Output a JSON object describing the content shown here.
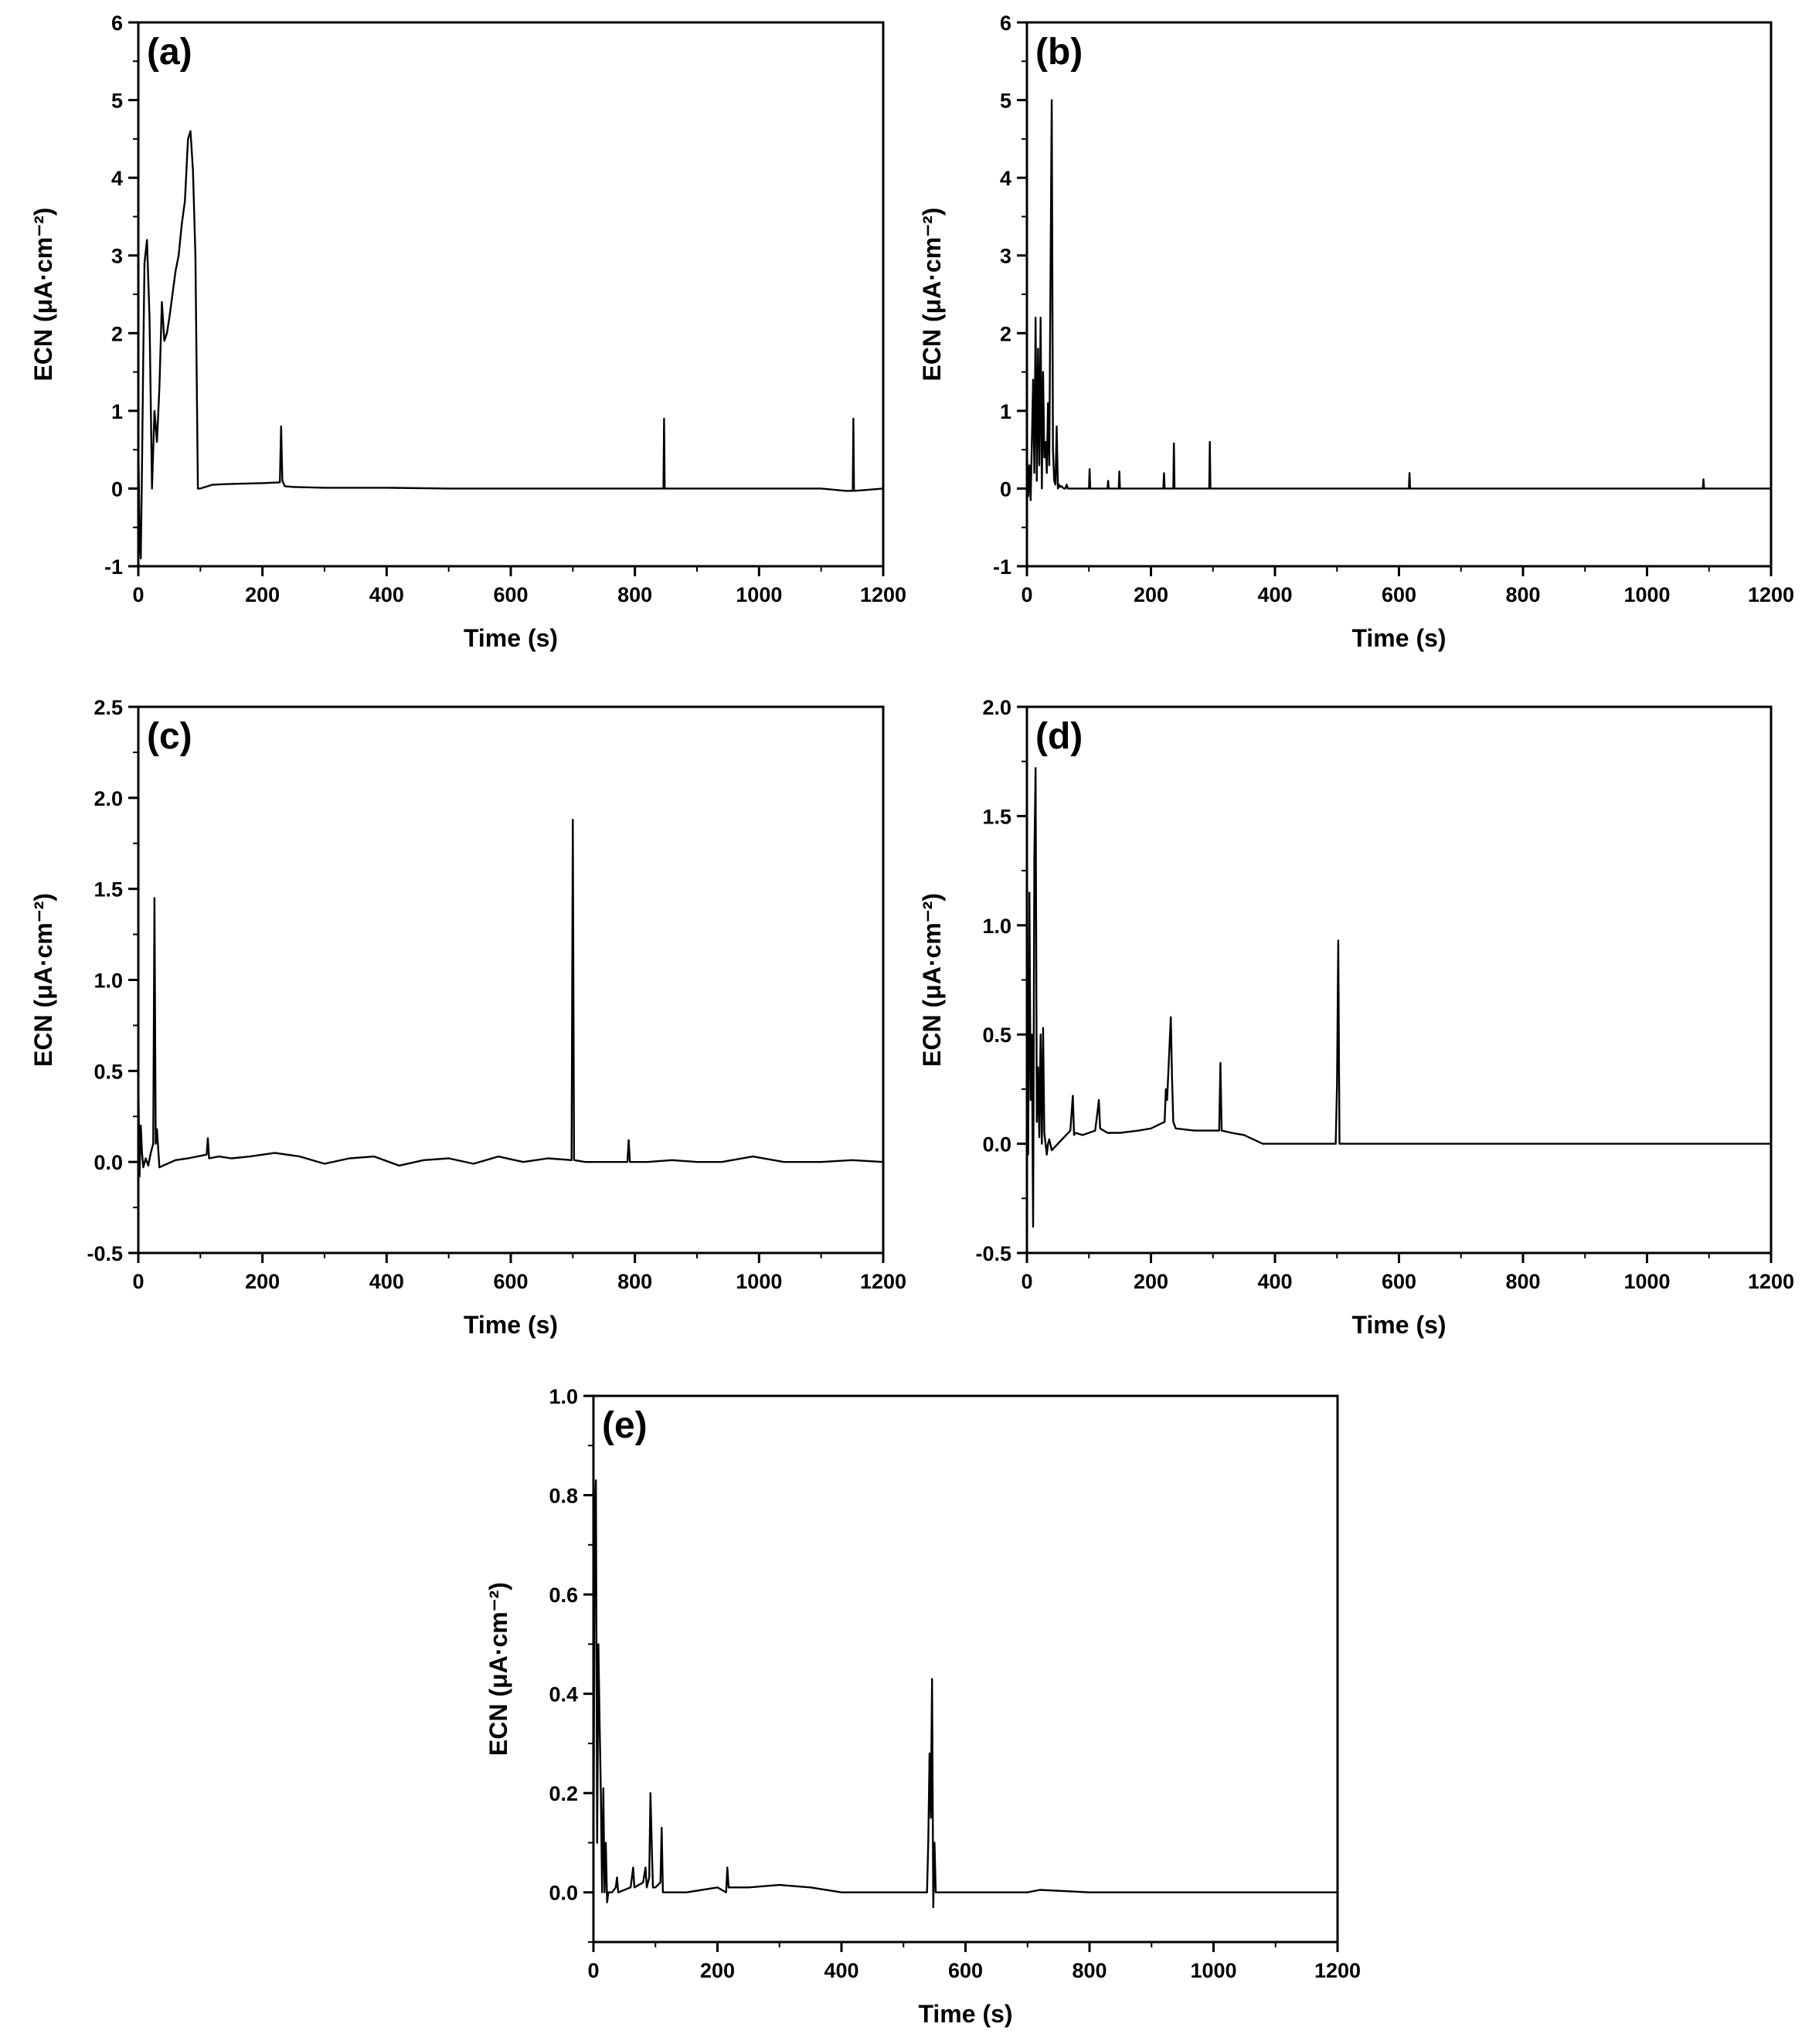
{
  "chart_data": [
    {
      "panel_label": "(a)",
      "type": "line",
      "xlabel": "Time (s)",
      "ylabel": "ECN (μA·cm⁻²)",
      "xlim": [
        0,
        1200
      ],
      "ylim": [
        -1,
        6
      ],
      "xticks": [
        0,
        200,
        400,
        600,
        800,
        1000,
        1200
      ],
      "yticks": [
        -1,
        0,
        1,
        2,
        3,
        4,
        5,
        6
      ],
      "yticklabels": [
        "-1",
        "0",
        "1",
        "2",
        "3",
        "4",
        "5",
        "6"
      ],
      "grid": false,
      "x": [
        0,
        2,
        4,
        6,
        8,
        10,
        14,
        18,
        22,
        26,
        30,
        34,
        38,
        42,
        46,
        50,
        55,
        60,
        65,
        70,
        75,
        80,
        84,
        88,
        92,
        96,
        100,
        120,
        150,
        200,
        228,
        230,
        232,
        236,
        250,
        300,
        400,
        500,
        600,
        700,
        800,
        846,
        847,
        848,
        900,
        1000,
        1100,
        1140,
        1151,
        1152,
        1153,
        1170,
        1200
      ],
      "y": [
        0.6,
        -0.6,
        -0.9,
        0.3,
        1.7,
        2.9,
        3.2,
        2.2,
        0.0,
        1.0,
        0.6,
        1.3,
        2.4,
        1.9,
        2.0,
        2.2,
        2.5,
        2.8,
        3.0,
        3.4,
        3.7,
        4.5,
        4.6,
        4.1,
        3.0,
        0.0,
        0.0,
        0.05,
        0.06,
        0.07,
        0.08,
        0.8,
        0.1,
        0.03,
        0.02,
        0.01,
        0.01,
        0.0,
        0.0,
        0.0,
        0.0,
        0.0,
        0.9,
        0.0,
        0.0,
        0.0,
        0.0,
        -0.03,
        -0.03,
        0.9,
        -0.03,
        -0.02,
        0.0
      ]
    },
    {
      "panel_label": "(b)",
      "type": "line",
      "xlabel": "Time (s)",
      "ylabel": "ECN (μA·cm⁻²)",
      "xlim": [
        0,
        1200
      ],
      "ylim": [
        -1,
        6
      ],
      "xticks": [
        0,
        200,
        400,
        600,
        800,
        1000,
        1200
      ],
      "yticks": [
        -1,
        0,
        1,
        2,
        3,
        4,
        5,
        6
      ],
      "yticklabels": [
        "-1",
        "0",
        "1",
        "2",
        "3",
        "4",
        "5",
        "6"
      ],
      "grid": false,
      "x": [
        0,
        2,
        4,
        6,
        8,
        10,
        12,
        14,
        16,
        18,
        20,
        22,
        24,
        26,
        28,
        30,
        32,
        34,
        36,
        38,
        40,
        42,
        44,
        46,
        48,
        50,
        52,
        54,
        56,
        58,
        60,
        62,
        64,
        66,
        70,
        100,
        101,
        102,
        130,
        131,
        132,
        140,
        148,
        149,
        150,
        220,
        221,
        222,
        236,
        237,
        238,
        294,
        295,
        296,
        300,
        400,
        500,
        616,
        617,
        618,
        700,
        800,
        1090,
        1091,
        1092,
        1200
      ],
      "y": [
        0.5,
        -0.1,
        0.3,
        -0.15,
        0.6,
        1.4,
        0.2,
        2.2,
        0.1,
        1.8,
        0.3,
        2.2,
        0.0,
        1.5,
        0.4,
        0.6,
        0.2,
        1.1,
        0.3,
        2.7,
        5.0,
        0.5,
        0.1,
        0.05,
        0.8,
        0.0,
        0.05,
        0.02,
        0.03,
        0.01,
        0.0,
        0.0,
        0.05,
        0.0,
        0.0,
        0.0,
        0.25,
        0.0,
        0.0,
        0.1,
        0.0,
        0.0,
        0.0,
        0.22,
        0.0,
        0.0,
        0.2,
        0.0,
        0.0,
        0.58,
        0.0,
        0.0,
        0.6,
        0.0,
        0.0,
        0.0,
        0.0,
        0.0,
        0.2,
        0.0,
        0.0,
        0.0,
        0.0,
        0.12,
        0.0,
        0.0
      ]
    },
    {
      "panel_label": "(c)",
      "type": "line",
      "xlabel": "Time (s)",
      "ylabel": "ECN (μA·cm⁻²)",
      "xlim": [
        0,
        1200
      ],
      "ylim": [
        -0.5,
        2.5
      ],
      "xticks": [
        0,
        200,
        400,
        600,
        800,
        1000,
        1200
      ],
      "yticks": [
        -0.5,
        0.0,
        0.5,
        1.0,
        1.5,
        2.0,
        2.5
      ],
      "yticklabels": [
        "-0.5",
        "0.0",
        "0.5",
        "1.0",
        "1.5",
        "2.0",
        "2.5"
      ],
      "grid": false,
      "x": [
        0,
        2,
        4,
        6,
        8,
        12,
        16,
        20,
        24,
        26,
        28,
        30,
        34,
        40,
        60,
        80,
        110,
        112,
        114,
        130,
        150,
        180,
        220,
        260,
        300,
        340,
        380,
        420,
        460,
        500,
        540,
        580,
        620,
        660,
        698,
        700,
        702,
        720,
        760,
        788,
        790,
        792,
        820,
        860,
        900,
        940,
        990,
        1040,
        1100,
        1150,
        1200
      ],
      "y": [
        0.45,
        -0.08,
        0.2,
        0.05,
        -0.03,
        0.02,
        -0.02,
        0.05,
        0.1,
        1.45,
        0.1,
        0.18,
        -0.03,
        -0.02,
        0.01,
        0.02,
        0.04,
        0.13,
        0.02,
        0.03,
        0.02,
        0.03,
        0.05,
        0.03,
        -0.01,
        0.02,
        0.03,
        -0.02,
        0.01,
        0.02,
        -0.01,
        0.03,
        0.0,
        0.02,
        0.01,
        1.88,
        0.01,
        0.0,
        0.0,
        0.0,
        0.12,
        0.0,
        0.0,
        0.01,
        0.0,
        0.0,
        0.03,
        0.0,
        0.0,
        0.01,
        0.0
      ]
    },
    {
      "panel_label": "(d)",
      "type": "line",
      "xlabel": "Time (s)",
      "ylabel": "ECN (μA·cm⁻²)",
      "xlim": [
        0,
        1200
      ],
      "ylim": [
        -0.5,
        2.0
      ],
      "xticks": [
        0,
        200,
        400,
        600,
        800,
        1000,
        1200
      ],
      "yticks": [
        -0.5,
        0.0,
        0.5,
        1.0,
        1.5,
        2.0
      ],
      "yticklabels": [
        "-0.5",
        "0.0",
        "0.5",
        "1.0",
        "1.5",
        "2.0"
      ],
      "grid": false,
      "x": [
        0,
        2,
        4,
        6,
        8,
        10,
        12,
        14,
        16,
        18,
        20,
        22,
        24,
        26,
        28,
        30,
        32,
        34,
        36,
        40,
        50,
        60,
        70,
        74,
        76,
        78,
        90,
        100,
        110,
        114,
        116,
        118,
        130,
        150,
        180,
        200,
        222,
        224,
        226,
        232,
        234,
        236,
        240,
        270,
        300,
        310,
        312,
        314,
        330,
        350,
        380,
        400,
        450,
        498,
        500,
        502,
        504,
        510,
        600,
        700,
        800,
        1000,
        1200
      ],
      "y": [
        0.3,
        -0.05,
        1.15,
        0.2,
        0.5,
        -0.38,
        1.3,
        1.72,
        0.1,
        0.35,
        0.03,
        0.5,
        0.0,
        0.53,
        0.05,
        0.0,
        -0.05,
        0.0,
        0.02,
        -0.03,
        0.0,
        0.03,
        0.06,
        0.22,
        0.04,
        0.05,
        0.04,
        0.05,
        0.06,
        0.15,
        0.2,
        0.07,
        0.05,
        0.05,
        0.06,
        0.07,
        0.1,
        0.25,
        0.2,
        0.58,
        0.3,
        0.1,
        0.07,
        0.06,
        0.06,
        0.06,
        0.37,
        0.06,
        0.05,
        0.04,
        0.0,
        0.0,
        0.0,
        0.0,
        0.27,
        0.93,
        0.0,
        0.0,
        0.0,
        0.0,
        0.0,
        0.0,
        0.0
      ]
    },
    {
      "panel_label": "(e)",
      "type": "line",
      "xlabel": "Time (s)",
      "ylabel": "ECN (μA·cm⁻²)",
      "xlim": [
        0,
        1200
      ],
      "ylim": [
        -0.1,
        1.0
      ],
      "xticks": [
        0,
        200,
        400,
        600,
        800,
        1000,
        1200
      ],
      "yticks": [
        0.0,
        0.2,
        0.4,
        0.6,
        0.8,
        1.0
      ],
      "yticklabels": [
        "0.0",
        "0.2",
        "0.4",
        "0.6",
        "0.8",
        "1.0"
      ],
      "grid": false,
      "x": [
        0,
        2,
        4,
        6,
        8,
        10,
        12,
        14,
        16,
        18,
        20,
        22,
        24,
        30,
        36,
        38,
        40,
        60,
        64,
        66,
        80,
        84,
        86,
        90,
        92,
        94,
        96,
        100,
        108,
        110,
        112,
        150,
        200,
        214,
        216,
        218,
        250,
        300,
        350,
        400,
        450,
        500,
        538,
        540,
        542,
        544,
        546,
        548,
        550,
        552,
        560,
        600,
        700,
        720,
        800,
        900,
        1000,
        1100,
        1200
      ],
      "y": [
        0.0,
        0.75,
        0.83,
        0.1,
        0.5,
        0.34,
        0.2,
        0.0,
        0.21,
        0.0,
        0.1,
        -0.02,
        0.0,
        0.0,
        0.01,
        0.03,
        0.0,
        0.01,
        0.05,
        0.01,
        0.02,
        0.05,
        0.01,
        0.03,
        0.2,
        0.1,
        0.01,
        0.01,
        0.02,
        0.13,
        0.0,
        0.0,
        0.01,
        0.0,
        0.05,
        0.01,
        0.01,
        0.015,
        0.01,
        0.0,
        0.0,
        0.0,
        0.0,
        0.1,
        0.28,
        0.15,
        0.43,
        -0.03,
        0.1,
        0.0,
        0.0,
        0.0,
        0.0,
        0.005,
        0.0,
        0.0,
        0.0,
        0.0,
        0.0
      ]
    }
  ]
}
